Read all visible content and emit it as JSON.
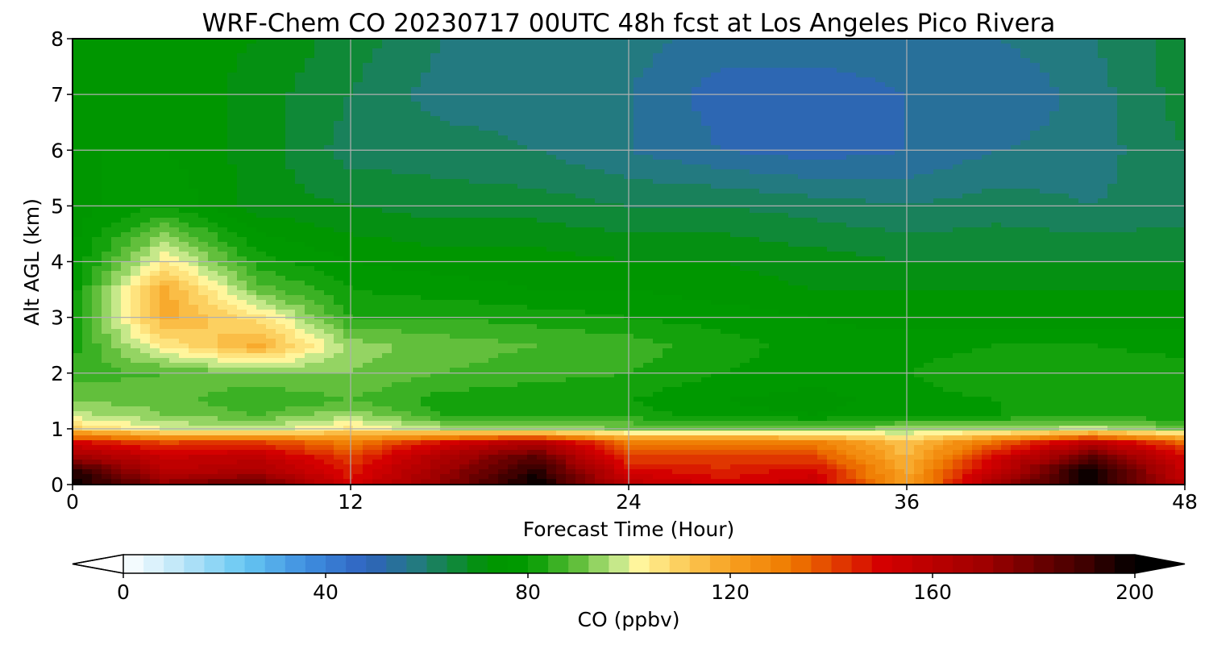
{
  "chart_data": {
    "type": "heatmap",
    "title": "WRF-Chem CO  20230717 00UTC 48h fcst at Los Angeles Pico Rivera",
    "xlabel": "Forecast Time (Hour)",
    "ylabel": "Alt AGL (km)",
    "xlim": [
      0,
      48
    ],
    "ylim": [
      0,
      8
    ],
    "xticks": [
      "0",
      "12",
      "24",
      "36",
      "48"
    ],
    "yticks": [
      "0",
      "1",
      "2",
      "3",
      "4",
      "5",
      "6",
      "7",
      "8"
    ],
    "grid": true,
    "colorbar": {
      "label": "CO  (ppbv)",
      "range": [
        0,
        200
      ],
      "ticks": [
        "0",
        "40",
        "80",
        "120",
        "160",
        "200"
      ],
      "extend": "both",
      "step": 4
    },
    "x": [
      0,
      4,
      8,
      12,
      16,
      20,
      24,
      28,
      32,
      36,
      40,
      44,
      48
    ],
    "y": [
      0,
      0.25,
      0.5,
      0.75,
      1,
      1.25,
      1.5,
      2,
      2.5,
      3,
      3.5,
      4,
      5,
      6,
      7,
      8
    ],
    "values": [
      [
        200,
        175,
        185,
        150,
        175,
        200,
        160,
        150,
        155,
        120,
        170,
        200,
        160
      ],
      [
        195,
        160,
        165,
        145,
        170,
        195,
        150,
        145,
        150,
        118,
        160,
        200,
        155
      ],
      [
        170,
        155,
        158,
        140,
        165,
        185,
        140,
        140,
        140,
        115,
        150,
        185,
        150
      ],
      [
        150,
        140,
        142,
        130,
        150,
        165,
        130,
        130,
        130,
        112,
        135,
        160,
        135
      ],
      [
        110,
        100,
        98,
        105,
        96,
        94,
        92,
        92,
        90,
        94,
        95,
        98,
        90
      ],
      [
        98,
        92,
        88,
        95,
        84,
        83,
        82,
        78,
        76,
        80,
        80,
        82,
        80
      ],
      [
        92,
        90,
        84,
        88,
        82,
        80,
        80,
        76,
        74,
        78,
        80,
        80,
        80
      ],
      [
        86,
        88,
        92,
        92,
        88,
        86,
        84,
        80,
        78,
        80,
        84,
        84,
        82
      ],
      [
        82,
        105,
        118,
        94,
        90,
        88,
        86,
        82,
        78,
        78,
        80,
        80,
        78
      ],
      [
        80,
        118,
        106,
        84,
        84,
        82,
        80,
        78,
        76,
        74,
        74,
        74,
        74
      ],
      [
        78,
        118,
        90,
        80,
        78,
        76,
        76,
        74,
        72,
        72,
        72,
        72,
        72
      ],
      [
        76,
        104,
        82,
        76,
        74,
        74,
        72,
        72,
        70,
        68,
        68,
        68,
        68
      ],
      [
        74,
        80,
        70,
        68,
        66,
        66,
        64,
        64,
        62,
        60,
        62,
        60,
        62
      ],
      [
        76,
        76,
        70,
        62,
        62,
        60,
        56,
        52,
        50,
        52,
        56,
        58,
        64
      ],
      [
        74,
        76,
        70,
        64,
        58,
        58,
        56,
        50,
        50,
        52,
        52,
        58,
        66
      ],
      [
        72,
        74,
        72,
        66,
        60,
        58,
        58,
        54,
        54,
        54,
        56,
        60,
        66
      ]
    ]
  }
}
